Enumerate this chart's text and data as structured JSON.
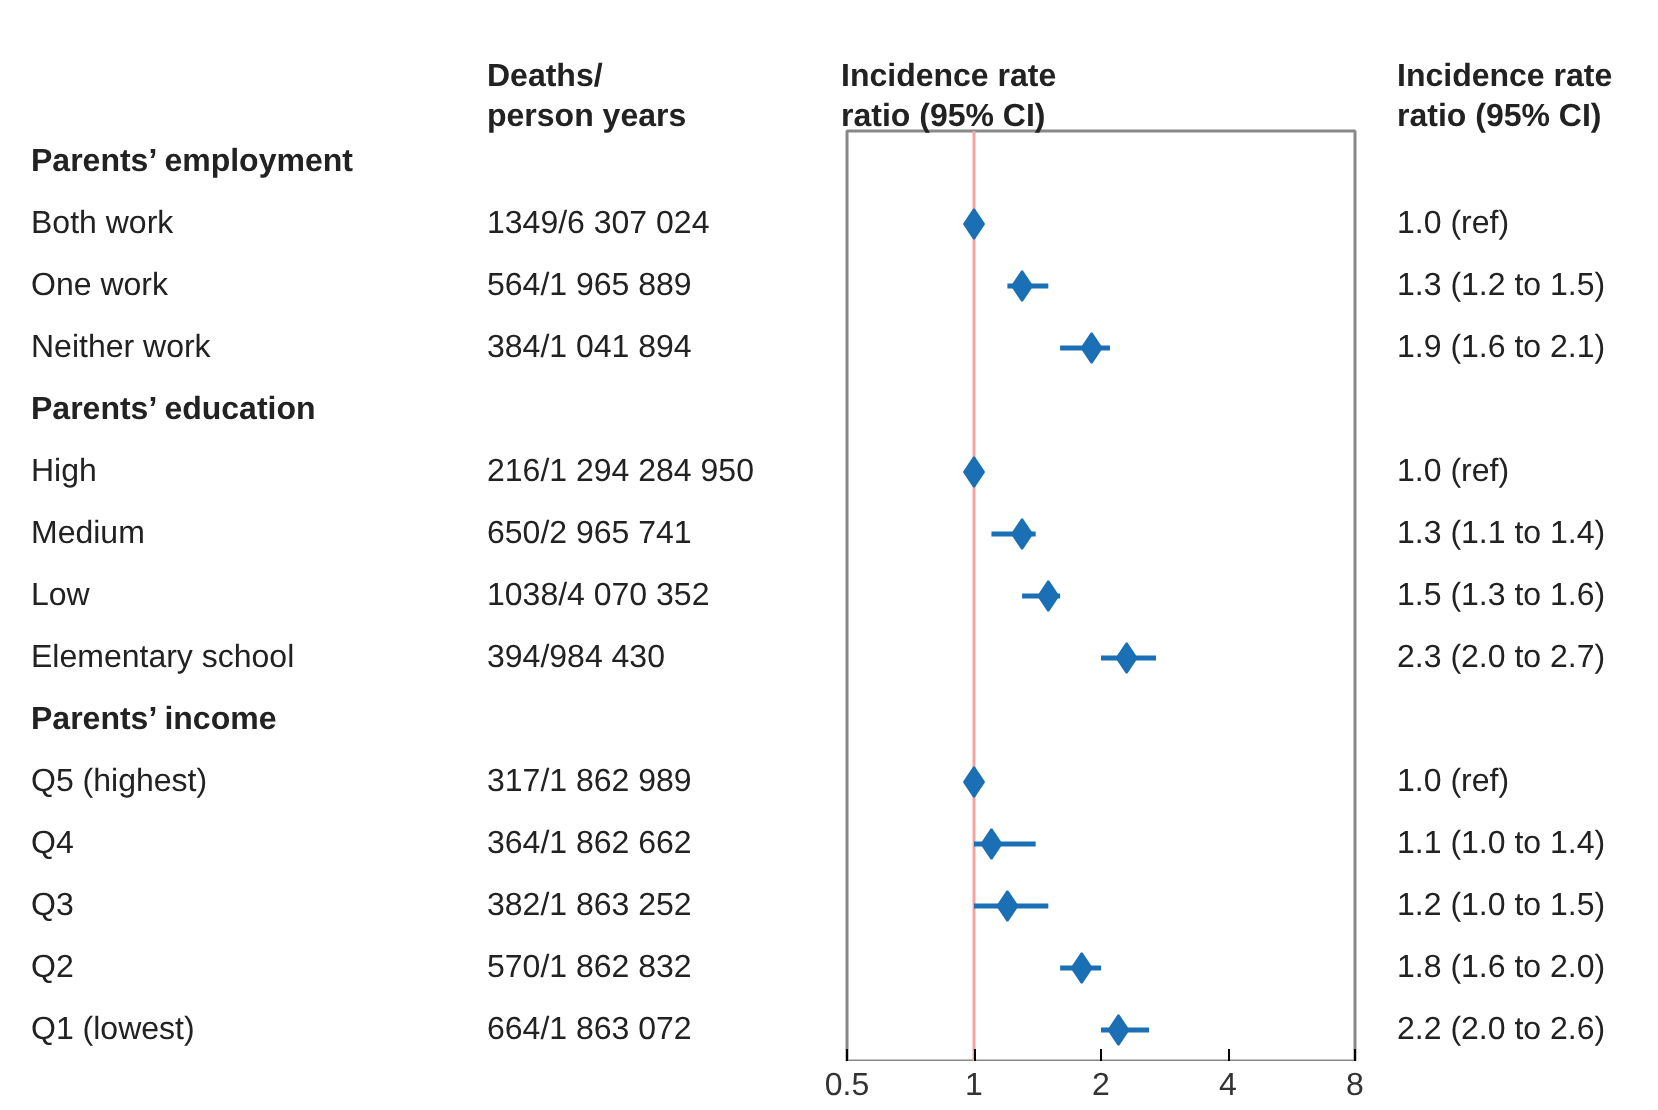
{
  "chart_data": {
    "type": "scatter",
    "orientation": "horizontal",
    "y_categories": [
      "Parents’ employment",
      "Both work",
      "One work",
      "Neither work",
      "Parents’ education",
      "High",
      "Medium",
      "Low",
      "Elementary school",
      "Parents’ income",
      "Q5 (highest)",
      "Q4",
      "Q3",
      "Q2",
      "Q1 (lowest)"
    ],
    "series": [
      {
        "color": "#1a6fb5",
        "values": [
          null,
          1.0,
          1.3,
          1.9,
          null,
          1.0,
          1.3,
          1.5,
          2.3,
          null,
          1.0,
          1.1,
          1.2,
          1.8,
          2.2
        ],
        "errors": [
          null,
          null,
          [
            1.2,
            1.5
          ],
          [
            1.6,
            2.1
          ],
          null,
          null,
          [
            1.1,
            1.4
          ],
          [
            1.3,
            1.6
          ],
          [
            2.0,
            2.7
          ],
          null,
          null,
          [
            1.0,
            1.4
          ],
          [
            1.0,
            1.5
          ],
          [
            1.6,
            2.0
          ],
          [
            2.0,
            2.6
          ]
        ]
      }
    ],
    "annotations": [
      "Deaths/\nperson years",
      "Incidence rate\nratio (95% CI)",
      "Incidence rate\nratio (95% CI)",
      "1349/6 307 024",
      "564/1 965 889",
      "384/1 041 894",
      "216/1 294 284 950",
      "650/2 965 741",
      "1038/4 070 352",
      "394/984 430",
      "317/1 862 989",
      "364/1 862 662",
      "382/1 863 252",
      "570/1 862 832",
      "664/1 863 072",
      "1.0 (ref)",
      "1.3 (1.2 to 1.5)",
      "1.9 (1.6 to 2.1)",
      "1.0 (ref)",
      "1.3 (1.1 to 1.4)",
      "1.5 (1.3 to 1.6)",
      "2.3 (2.0 to 2.7)",
      "1.0 (ref)",
      "1.1 (1.0 to 1.4)",
      "1.2 (1.0 to 1.5)",
      "1.8 (1.6 to 2.0)",
      "2.2 (2.0 to 2.6)"
    ],
    "log": "x",
    "xlim": [
      0.5,
      8
    ],
    "xticks": [
      0.5,
      1,
      2,
      4,
      8
    ],
    "ref_lines": [
      {
        "axis": "x",
        "value": 1,
        "color": "#f4a3a3"
      }
    ],
    "marker": "diamond",
    "grid": false
  }
}
